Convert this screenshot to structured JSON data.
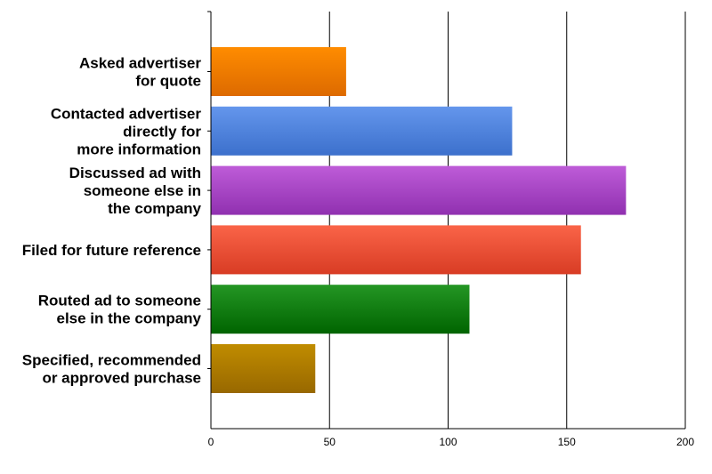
{
  "chart_data": {
    "type": "bar",
    "orientation": "horizontal",
    "title": "",
    "xlabel": "",
    "ylabel": "",
    "categories": [
      [
        "Asked advertiser",
        "for quote"
      ],
      [
        "Contacted advertiser",
        "directly for",
        "more information"
      ],
      [
        "Discussed ad with",
        "someone else in",
        "the company"
      ],
      [
        "Filed for future reference"
      ],
      [
        "Routed ad to someone",
        "else in the company"
      ],
      [
        "Specified, recommended",
        "or approved purchase"
      ]
    ],
    "values": [
      57,
      127,
      175,
      156,
      109,
      44
    ],
    "colors": [
      [
        "#ff8c00",
        "#dd6a00"
      ],
      [
        "#6496ec",
        "#3c70cc"
      ],
      [
        "#be5cd8",
        "#9030b0"
      ],
      [
        "#fa6448",
        "#d83c24"
      ],
      [
        "#249624",
        "#006400"
      ],
      [
        "#c08c00",
        "#986800"
      ]
    ],
    "xlim": [
      0,
      200
    ],
    "xticks": [
      0,
      50,
      100,
      150,
      200
    ],
    "grid": true,
    "legend": "none"
  }
}
